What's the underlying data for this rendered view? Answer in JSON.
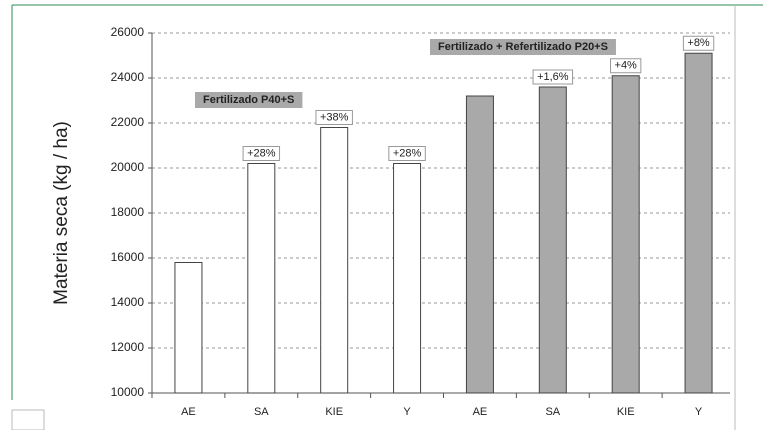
{
  "chart_data": {
    "type": "bar",
    "y_label": "Materia seca (kg / ha)",
    "categories": [
      "AE",
      "SA",
      "KIE",
      "Y",
      "AE",
      "SA",
      "KIE",
      "Y"
    ],
    "series": [
      {
        "name": "Fertilizado P40+S",
        "color": "#ffffff",
        "values": [
          15800,
          20200,
          21800,
          20200,
          null,
          null,
          null,
          null
        ]
      },
      {
        "name": "Fertilizado + Refertilizado P20+S",
        "color": "#a9a9a9",
        "values": [
          null,
          null,
          null,
          null,
          23200,
          23600,
          24100,
          25100
        ]
      }
    ],
    "bar_annotations": [
      null,
      "+28%",
      "+38%",
      "+28%",
      null,
      "+1,6%",
      "+4%",
      "+8%"
    ],
    "ylim": [
      10000,
      26000
    ],
    "yticks": [
      10000,
      12000,
      14000,
      16000,
      18000,
      20000,
      22000,
      24000,
      26000
    ],
    "grid": true
  }
}
